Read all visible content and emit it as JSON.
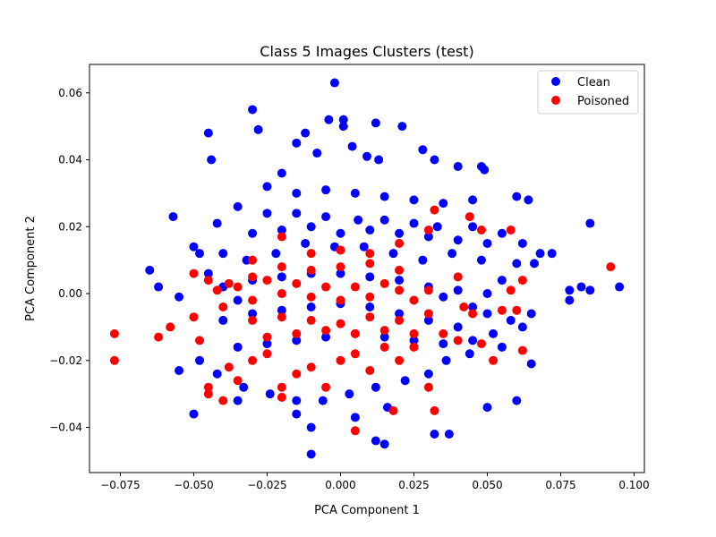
{
  "chart_data": {
    "type": "scatter",
    "title": "Class 5 Images Clusters (test)",
    "xlabel": "PCA Component 1",
    "ylabel": "PCA Component 2",
    "xlim": [
      -0.0855,
      0.1035
    ],
    "ylim": [
      -0.0535,
      0.0685
    ],
    "xticks": [
      -0.075,
      -0.05,
      -0.025,
      0.0,
      0.025,
      0.05,
      0.075,
      0.1
    ],
    "xtick_labels": [
      "−0.075",
      "−0.050",
      "−0.025",
      "0.000",
      "0.025",
      "0.050",
      "0.075",
      "0.100"
    ],
    "yticks": [
      -0.04,
      -0.02,
      0.0,
      0.02,
      0.04,
      0.06
    ],
    "ytick_labels": [
      "−0.04",
      "−0.02",
      "0.00",
      "0.02",
      "0.04",
      "0.06"
    ],
    "grid": false,
    "legend_position": "top-right",
    "series": [
      {
        "name": "Clean",
        "color": "#0000ff",
        "points": [
          [
            -0.002,
            0.063
          ],
          [
            -0.03,
            0.055
          ],
          [
            -0.028,
            0.049
          ],
          [
            -0.012,
            0.048
          ],
          [
            0.012,
            0.051
          ],
          [
            0.021,
            0.05
          ],
          [
            -0.004,
            0.052
          ],
          [
            0.001,
            0.052
          ],
          [
            0.001,
            0.05
          ],
          [
            -0.045,
            0.048
          ],
          [
            -0.044,
            0.04
          ],
          [
            -0.02,
            0.036
          ],
          [
            -0.015,
            0.045
          ],
          [
            -0.008,
            0.042
          ],
          [
            0.004,
            0.044
          ],
          [
            0.009,
            0.041
          ],
          [
            0.013,
            0.04
          ],
          [
            0.028,
            0.043
          ],
          [
            0.032,
            0.04
          ],
          [
            0.04,
            0.038
          ],
          [
            0.048,
            0.038
          ],
          [
            0.049,
            0.037
          ],
          [
            0.06,
            0.029
          ],
          [
            0.064,
            0.028
          ],
          [
            0.085,
            0.021
          ],
          [
            -0.057,
            0.023
          ],
          [
            -0.065,
            0.007
          ],
          [
            -0.062,
            0.002
          ],
          [
            -0.055,
            -0.001
          ],
          [
            -0.05,
            0.014
          ],
          [
            -0.048,
            0.012
          ],
          [
            -0.042,
            0.021
          ],
          [
            -0.035,
            0.026
          ],
          [
            -0.025,
            0.024
          ],
          [
            -0.015,
            0.024
          ],
          [
            -0.005,
            0.023
          ],
          [
            0.006,
            0.022
          ],
          [
            0.015,
            0.022
          ],
          [
            0.025,
            0.021
          ],
          [
            0.033,
            0.02
          ],
          [
            0.045,
            0.02
          ],
          [
            0.055,
            0.018
          ],
          [
            0.062,
            0.015
          ],
          [
            0.068,
            0.012
          ],
          [
            0.072,
            0.012
          ],
          [
            0.078,
            0.001
          ],
          [
            0.082,
            0.002
          ],
          [
            0.085,
            0.001
          ],
          [
            0.095,
            0.002
          ],
          [
            0.078,
            -0.002
          ],
          [
            0.065,
            -0.006
          ],
          [
            0.058,
            -0.008
          ],
          [
            0.052,
            -0.012
          ],
          [
            0.044,
            -0.018
          ],
          [
            0.036,
            -0.02
          ],
          [
            0.03,
            -0.024
          ],
          [
            0.022,
            -0.026
          ],
          [
            0.012,
            -0.028
          ],
          [
            0.003,
            -0.03
          ],
          [
            -0.006,
            -0.032
          ],
          [
            -0.015,
            -0.032
          ],
          [
            -0.024,
            -0.03
          ],
          [
            -0.033,
            -0.028
          ],
          [
            -0.042,
            -0.024
          ],
          [
            -0.048,
            -0.02
          ],
          [
            -0.055,
            -0.023
          ],
          [
            -0.05,
            -0.036
          ],
          [
            -0.035,
            -0.032
          ],
          [
            -0.015,
            -0.036
          ],
          [
            -0.01,
            -0.04
          ],
          [
            -0.01,
            -0.048
          ],
          [
            0.005,
            -0.037
          ],
          [
            0.012,
            -0.044
          ],
          [
            0.015,
            -0.045
          ],
          [
            0.016,
            -0.034
          ],
          [
            0.032,
            -0.042
          ],
          [
            0.037,
            -0.042
          ],
          [
            0.05,
            -0.034
          ],
          [
            0.06,
            -0.032
          ],
          [
            0.065,
            -0.021
          ],
          [
            -0.04,
            0.012
          ],
          [
            -0.032,
            0.01
          ],
          [
            -0.022,
            0.012
          ],
          [
            -0.012,
            0.015
          ],
          [
            -0.002,
            0.014
          ],
          [
            0.008,
            0.014
          ],
          [
            0.018,
            0.012
          ],
          [
            0.028,
            0.01
          ],
          [
            0.038,
            0.012
          ],
          [
            0.048,
            0.01
          ],
          [
            -0.04,
            0.002
          ],
          [
            -0.03,
            0.004
          ],
          [
            -0.02,
            0.005
          ],
          [
            -0.01,
            0.006
          ],
          [
            0.0,
            0.006
          ],
          [
            0.01,
            0.005
          ],
          [
            0.02,
            0.004
          ],
          [
            0.03,
            0.002
          ],
          [
            0.04,
            0.001
          ],
          [
            0.05,
            0.0
          ],
          [
            -0.04,
            -0.008
          ],
          [
            -0.03,
            -0.006
          ],
          [
            -0.02,
            -0.005
          ],
          [
            -0.01,
            -0.004
          ],
          [
            0.0,
            -0.003
          ],
          [
            0.01,
            -0.004
          ],
          [
            0.02,
            -0.006
          ],
          [
            0.03,
            -0.008
          ],
          [
            0.04,
            -0.01
          ],
          [
            0.05,
            -0.006
          ],
          [
            -0.035,
            -0.016
          ],
          [
            -0.025,
            -0.015
          ],
          [
            -0.015,
            -0.014
          ],
          [
            -0.005,
            -0.013
          ],
          [
            0.005,
            -0.012
          ],
          [
            0.015,
            -0.013
          ],
          [
            0.025,
            -0.014
          ],
          [
            0.035,
            -0.015
          ],
          [
            0.045,
            -0.014
          ],
          [
            0.055,
            -0.016
          ],
          [
            -0.025,
            0.032
          ],
          [
            -0.015,
            0.03
          ],
          [
            -0.005,
            0.031
          ],
          [
            0.005,
            0.03
          ],
          [
            0.015,
            0.029
          ],
          [
            0.025,
            0.028
          ],
          [
            0.035,
            0.027
          ],
          [
            0.045,
            0.028
          ],
          [
            -0.03,
            0.018
          ],
          [
            -0.02,
            0.019
          ],
          [
            -0.01,
            0.02
          ],
          [
            0.0,
            0.018
          ],
          [
            0.01,
            0.019
          ],
          [
            0.02,
            0.018
          ],
          [
            0.03,
            0.017
          ],
          [
            0.04,
            0.016
          ],
          [
            0.05,
            0.015
          ],
          [
            -0.045,
            0.006
          ],
          [
            -0.035,
            -0.002
          ],
          [
            0.035,
            -0.001
          ],
          [
            0.045,
            -0.004
          ],
          [
            0.055,
            0.004
          ],
          [
            0.06,
            0.009
          ],
          [
            0.066,
            0.009
          ],
          [
            0.062,
            -0.01
          ]
        ]
      },
      {
        "name": "Poisoned",
        "color": "#ff0000",
        "points": [
          [
            -0.077,
            -0.012
          ],
          [
            -0.077,
            -0.02
          ],
          [
            -0.062,
            -0.013
          ],
          [
            -0.058,
            -0.01
          ],
          [
            -0.05,
            -0.007
          ],
          [
            -0.048,
            -0.014
          ],
          [
            -0.045,
            -0.028
          ],
          [
            -0.045,
            -0.03
          ],
          [
            -0.04,
            -0.032
          ],
          [
            -0.038,
            -0.022
          ],
          [
            -0.035,
            -0.026
          ],
          [
            -0.03,
            -0.02
          ],
          [
            -0.025,
            -0.018
          ],
          [
            -0.02,
            -0.028
          ],
          [
            -0.02,
            -0.031
          ],
          [
            -0.015,
            -0.024
          ],
          [
            -0.01,
            -0.022
          ],
          [
            -0.005,
            -0.028
          ],
          [
            0.0,
            -0.02
          ],
          [
            0.005,
            -0.018
          ],
          [
            0.005,
            -0.041
          ],
          [
            0.01,
            -0.023
          ],
          [
            0.015,
            -0.016
          ],
          [
            0.018,
            -0.035
          ],
          [
            0.02,
            -0.02
          ],
          [
            0.025,
            -0.016
          ],
          [
            0.03,
            -0.028
          ],
          [
            0.032,
            -0.035
          ],
          [
            0.035,
            -0.012
          ],
          [
            0.04,
            -0.014
          ],
          [
            -0.05,
            0.006
          ],
          [
            -0.045,
            0.004
          ],
          [
            -0.04,
            -0.004
          ],
          [
            -0.035,
            0.002
          ],
          [
            -0.03,
            -0.002
          ],
          [
            -0.025,
            0.004
          ],
          [
            -0.02,
            0.0
          ],
          [
            -0.015,
            0.003
          ],
          [
            -0.01,
            -0.001
          ],
          [
            -0.005,
            0.002
          ],
          [
            0.0,
            -0.002
          ],
          [
            0.005,
            0.002
          ],
          [
            0.01,
            -0.001
          ],
          [
            0.015,
            0.003
          ],
          [
            0.02,
            0.001
          ],
          [
            0.025,
            -0.002
          ],
          [
            0.03,
            0.001
          ],
          [
            -0.03,
            -0.008
          ],
          [
            -0.02,
            -0.007
          ],
          [
            -0.01,
            -0.008
          ],
          [
            0.0,
            -0.009
          ],
          [
            0.01,
            -0.007
          ],
          [
            0.02,
            -0.008
          ],
          [
            0.03,
            -0.006
          ],
          [
            -0.025,
            -0.013
          ],
          [
            -0.015,
            -0.012
          ],
          [
            -0.005,
            -0.011
          ],
          [
            0.005,
            -0.012
          ],
          [
            0.015,
            -0.011
          ],
          [
            0.025,
            -0.012
          ],
          [
            -0.02,
            0.017
          ],
          [
            -0.01,
            0.012
          ],
          [
            0.0,
            0.013
          ],
          [
            0.01,
            0.012
          ],
          [
            0.02,
            0.015
          ],
          [
            0.03,
            0.019
          ],
          [
            0.032,
            0.025
          ],
          [
            0.044,
            0.023
          ],
          [
            0.048,
            0.019
          ],
          [
            0.058,
            0.019
          ],
          [
            0.062,
            0.004
          ],
          [
            0.055,
            -0.005
          ],
          [
            0.06,
            -0.005
          ],
          [
            0.062,
            -0.017
          ],
          [
            0.052,
            -0.02
          ],
          [
            0.048,
            -0.015
          ],
          [
            0.045,
            -0.006
          ],
          [
            0.042,
            -0.004
          ],
          [
            0.04,
            0.005
          ],
          [
            0.058,
            0.001
          ],
          [
            -0.03,
            0.01
          ],
          [
            -0.02,
            0.008
          ],
          [
            -0.01,
            0.007
          ],
          [
            0.0,
            0.008
          ],
          [
            0.01,
            0.009
          ],
          [
            0.02,
            0.007
          ],
          [
            0.092,
            0.008
          ],
          [
            -0.038,
            0.003
          ],
          [
            -0.042,
            0.001
          ],
          [
            -0.03,
            0.005
          ]
        ]
      }
    ]
  }
}
